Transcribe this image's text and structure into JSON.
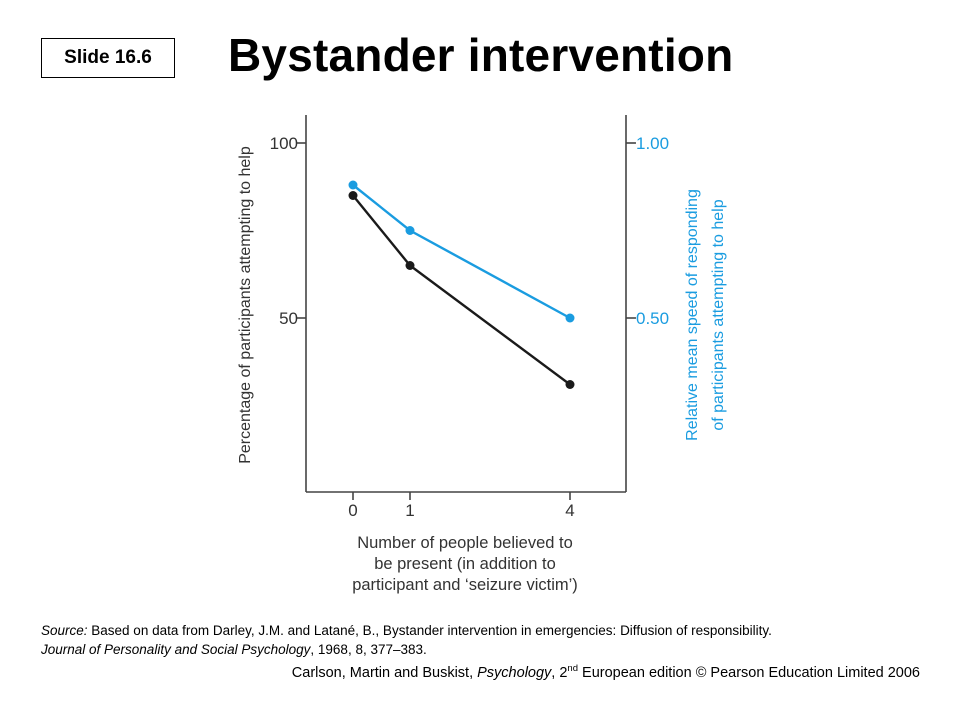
{
  "slide": {
    "badge": "Slide 16.6",
    "title": "Bystander intervention"
  },
  "chart_data": {
    "type": "line",
    "x": [
      0,
      1,
      4
    ],
    "x_ticks": [
      "0",
      "1",
      "4"
    ],
    "xlabel": [
      "Number of people believed to",
      "be present (in addition to",
      "participant and ‘seizure victim’)"
    ],
    "ylabel_left": "Percentage of participants attempting to help",
    "ylabel_right": [
      "Relative mean speed of responding",
      "of participants attempting to help"
    ],
    "ylim_left": [
      0,
      100
    ],
    "ylim_right": [
      0,
      1.0
    ],
    "left_ticks": [
      "100",
      "50"
    ],
    "left_tick_values": [
      100,
      50
    ],
    "right_ticks": [
      "1.00",
      "0.50"
    ],
    "right_tick_values": [
      1.0,
      0.5
    ],
    "series": [
      {
        "axis": "left",
        "color": "#1a1a1a",
        "values": [
          85,
          65,
          31
        ]
      },
      {
        "axis": "right",
        "color": "#1a9ce0",
        "values": [
          0.88,
          0.75,
          0.5
        ]
      }
    ],
    "grid": false,
    "legend": "none"
  },
  "source": {
    "label": "Source:",
    "text": " Based on data from Darley, J.M. and Latané, B., Bystander intervention in emergencies: Diffusion of responsibility.",
    "journal": "Journal of Personality and Social Psychology",
    "details": ", 1968, 8, 377–383."
  },
  "credit": {
    "authors": "Carlson, Martin and Buskist, ",
    "book": "Psychology",
    "edition_num": ", 2",
    "edition_sup": "nd",
    "rest": " European edition © Pearson Education Limited 2006"
  }
}
